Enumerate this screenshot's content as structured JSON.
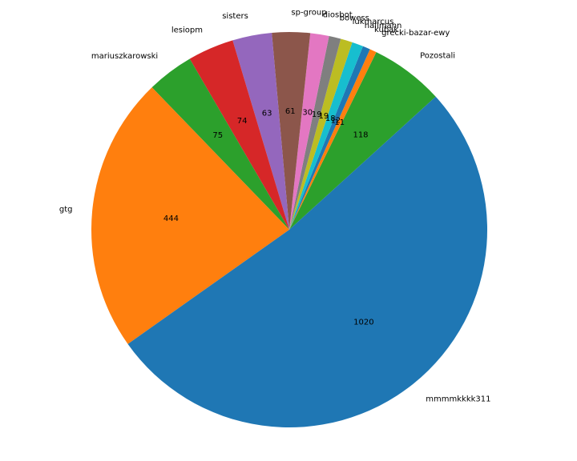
{
  "chart_data": {
    "type": "pie",
    "title": "",
    "start_angle_deg": 42.3,
    "direction": "counterclockwise",
    "labels": [
      "Pozostali",
      "grecki-bazar-ewy",
      "kubak",
      "hallmann",
      "lukmarcus",
      "bowess",
      "diosbot",
      "sp-group",
      "sisters",
      "lesiopm",
      "mariuszkarowski",
      "gtg",
      "mmmmkkkk311"
    ],
    "values": [
      118,
      11,
      12,
      18,
      19,
      19,
      30,
      61,
      63,
      74,
      75,
      444,
      1020
    ],
    "value_labels": [
      "118",
      "11",
      "12",
      "18",
      "19",
      "19",
      "30",
      "61",
      "63",
      "74",
      "75",
      "444",
      "1020"
    ],
    "colors": [
      "#2ca02c",
      "#ff7f0e",
      "#1f77b4",
      "#17becf",
      "#bcbd22",
      "#7f7f7f",
      "#e377c2",
      "#8c564b",
      "#9467bd",
      "#d62728",
      "#2ca02c",
      "#ff7f0e",
      "#1f77b4"
    ]
  }
}
